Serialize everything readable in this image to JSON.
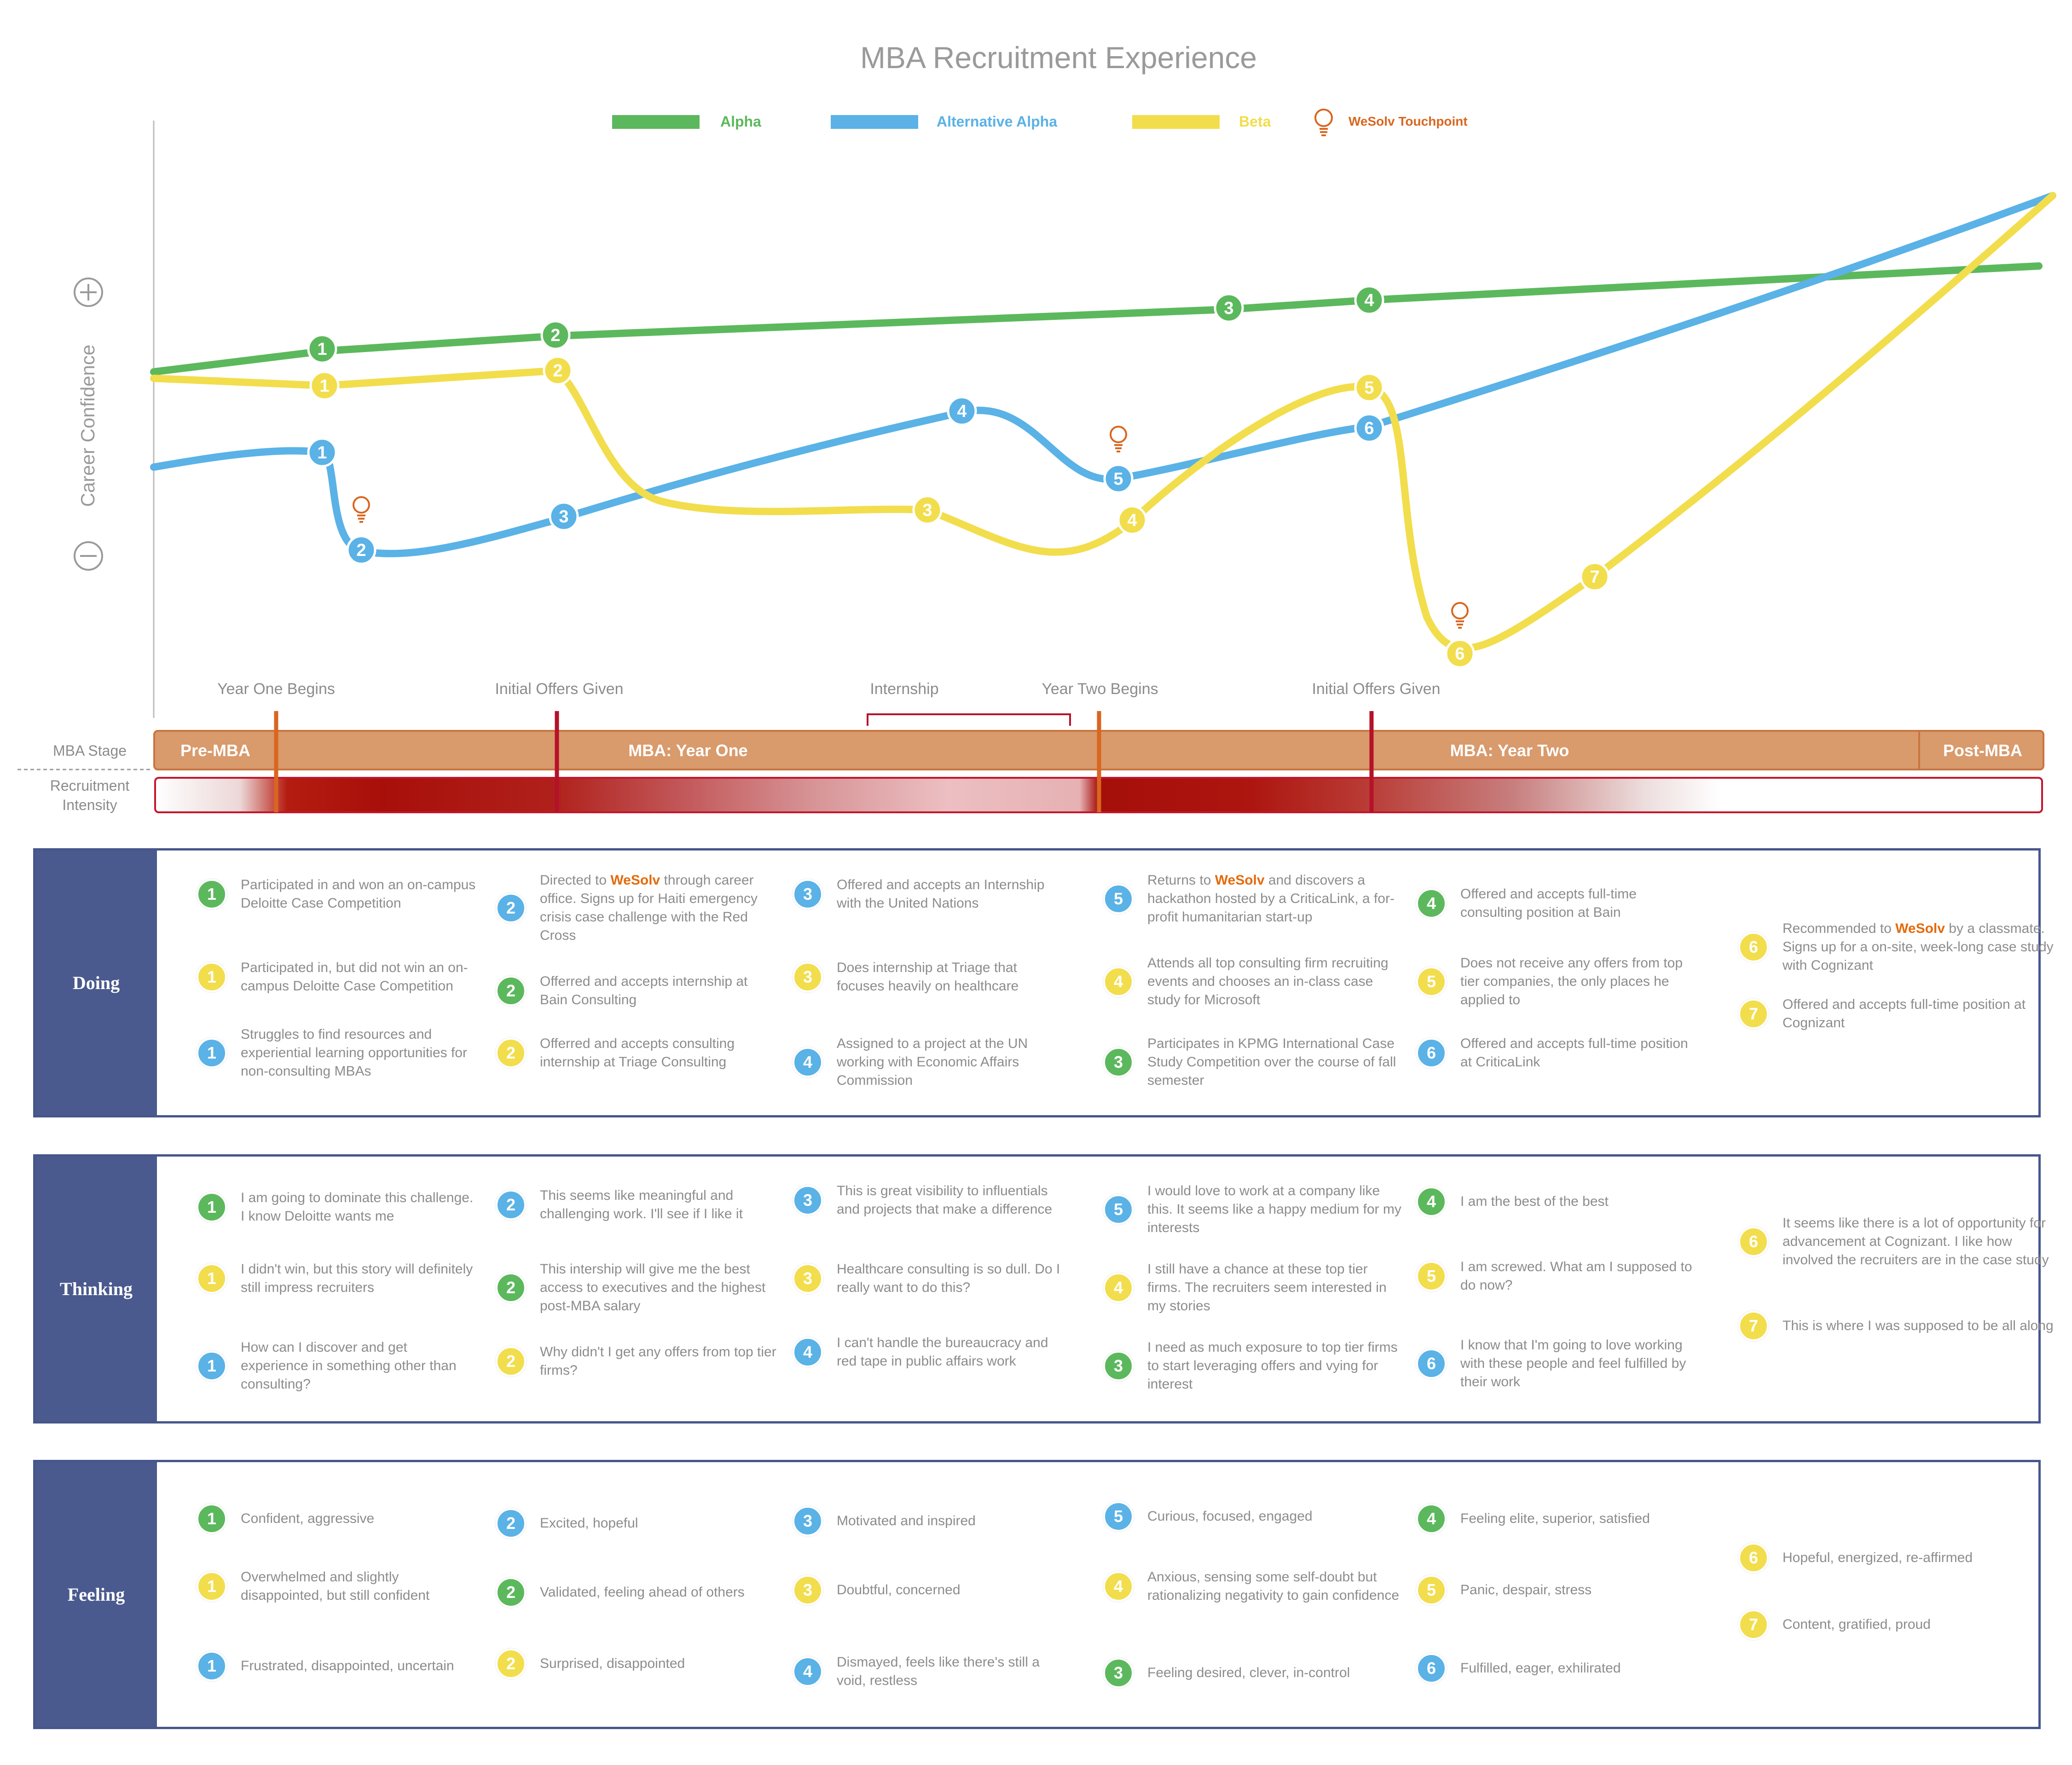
{
  "title": "MBA Recruitment Experience",
  "legend": [
    {
      "label": "Alpha",
      "color": "#5cb85c"
    },
    {
      "label": "Alternative Alpha",
      "color": "#5ab2e6"
    },
    {
      "label": "Beta",
      "color": "#f2dd4c"
    },
    {
      "label": "WeSolv Touchpoint",
      "color": "#d9661f",
      "icon": "lightbulb-icon"
    }
  ],
  "colors": {
    "alpha": "#5cb85c",
    "alt_alpha": "#5ab2e6",
    "beta": "#f2dd4c",
    "accent": "#e46a0c",
    "stage_fill": "#d99a6c",
    "stage_border": "#c8753f",
    "section_header": "#4a5a8e",
    "marker_dark": "#b5122a"
  },
  "y_axis": {
    "label": "Career Confidence",
    "plus": "+",
    "minus": "−"
  },
  "milestones": [
    "Year One Begins",
    "Initial Offers Given",
    "Internship",
    "Year Two Begins",
    "Initial Offers Given"
  ],
  "stage_row_label": "MBA Stage",
  "stages": [
    "Pre-MBA",
    "MBA: Year One",
    "MBA: Year Two",
    "Post-MBA"
  ],
  "intensity_label": "Recruitment Intensity",
  "sections": [
    {
      "name": "Doing",
      "entries": [
        {
          "num": "1",
          "color": "green",
          "text": "Participated in and won an on-campus Deloitte Case Competition"
        },
        {
          "num": "1",
          "color": "yellow",
          "text": "Participated in, but did not win an on-campus Deloitte Case Competition"
        },
        {
          "num": "1",
          "color": "blue",
          "text": "Struggles to find resources and experiential learning opportunities for non-consulting MBAs"
        },
        {
          "num": "2",
          "color": "blue",
          "text_before": "Directed to ",
          "highlight": "WeSolv",
          "text_after": " through career office. Signs up for Haiti emergency crisis case challenge with the Red Cross"
        },
        {
          "num": "2",
          "color": "green",
          "text": "Offerred and accepts internship at Bain Consulting"
        },
        {
          "num": "2",
          "color": "yellow",
          "text": "Offerred and accepts consulting internship at Triage Consulting"
        },
        {
          "num": "3",
          "color": "blue",
          "text": "Offered and accepts an Internship with the United Nations"
        },
        {
          "num": "3",
          "color": "yellow",
          "text": "Does internship at Triage that focuses heavily on healthcare"
        },
        {
          "num": "4",
          "color": "blue",
          "text": "Assigned to a project at the UN working with Economic Affairs Commission"
        },
        {
          "num": "5",
          "color": "blue",
          "text_before": "Returns to ",
          "highlight": "WeSolv",
          "text_after": " and discovers a hackathon hosted by a CriticaLink, a for-profit humanitarian start-up"
        },
        {
          "num": "4",
          "color": "yellow",
          "text": "Attends all top consulting firm recruiting events and chooses an in-class case study for Microsoft"
        },
        {
          "num": "3",
          "color": "green",
          "text": "Participates in KPMG International Case Study Competition over the course of fall semester"
        },
        {
          "num": "4",
          "color": "green",
          "text": "Offered and accepts full-time consulting position at Bain"
        },
        {
          "num": "5",
          "color": "yellow",
          "text": "Does not receive any offers from top tier companies, the only places he applied to"
        },
        {
          "num": "6",
          "color": "blue",
          "text": "Offered and accepts full-time position at CriticaLink"
        },
        {
          "num": "6",
          "color": "yellow",
          "text_before": "Recommended to ",
          "highlight": "WeSolv",
          "text_after": " by a classmate. Signs up for a on-site, week-long case study with Cognizant"
        },
        {
          "num": "7",
          "color": "yellow",
          "text": "Offered and accepts full-time position at Cognizant"
        }
      ]
    },
    {
      "name": "Thinking",
      "entries": [
        {
          "num": "1",
          "color": "green",
          "text": "I am going to dominate this challenge. I know Deloitte wants me"
        },
        {
          "num": "1",
          "color": "yellow",
          "text": "I didn't win, but this story will definitely still impress recruiters"
        },
        {
          "num": "1",
          "color": "blue",
          "text": "How can I discover and get experience in something other than consulting?"
        },
        {
          "num": "2",
          "color": "blue",
          "text": "This seems like meaningful and challenging work. I'll see if I like it"
        },
        {
          "num": "2",
          "color": "green",
          "text": "This intership will give me the best access to executives and the highest post-MBA salary"
        },
        {
          "num": "2",
          "color": "yellow",
          "text": "Why didn't I get any offers from top tier firms?"
        },
        {
          "num": "3",
          "color": "blue",
          "text": "This is great visibility to influentials and projects that make a difference"
        },
        {
          "num": "3",
          "color": "yellow",
          "text": "Healthcare consulting is so dull. Do I really want to do this?"
        },
        {
          "num": "4",
          "color": "blue",
          "text": "I can't handle the bureaucracy and red tape in public affairs work"
        },
        {
          "num": "5",
          "color": "blue",
          "text": "I would love to work at a company like this. It seems like a happy medium for my interests"
        },
        {
          "num": "4",
          "color": "yellow",
          "text": "I still have a chance at these top tier firms. The recruiters seem interested in my stories"
        },
        {
          "num": "3",
          "color": "green",
          "text": "I need as much exposure to top tier firms to start leveraging offers and vying for interest"
        },
        {
          "num": "4",
          "color": "green",
          "text": "I am the best of the best"
        },
        {
          "num": "5",
          "color": "yellow",
          "text": "I am screwed. What am I supposed to do now?"
        },
        {
          "num": "6",
          "color": "blue",
          "text": "I know that I'm going to love working with these people and feel fulfilled by their work"
        },
        {
          "num": "6",
          "color": "yellow",
          "text": "It seems like there is a lot of opportunity for advancement at Cognizant. I like how involved the recruiters are in the case study"
        },
        {
          "num": "7",
          "color": "yellow",
          "text": "This is where I was supposed to be all along"
        }
      ]
    },
    {
      "name": "Feeling",
      "entries": [
        {
          "num": "1",
          "color": "green",
          "text": "Confident, aggressive"
        },
        {
          "num": "1",
          "color": "yellow",
          "text": "Overwhelmed and slightly disappointed, but still confident"
        },
        {
          "num": "1",
          "color": "blue",
          "text": "Frustrated, disappointed, uncertain"
        },
        {
          "num": "2",
          "color": "blue",
          "text": "Excited, hopeful"
        },
        {
          "num": "2",
          "color": "green",
          "text": "Validated, feeling ahead of others"
        },
        {
          "num": "2",
          "color": "yellow",
          "text": "Surprised, disappointed"
        },
        {
          "num": "3",
          "color": "blue",
          "text": "Motivated and inspired"
        },
        {
          "num": "3",
          "color": "yellow",
          "text": "Doubtful, concerned"
        },
        {
          "num": "4",
          "color": "blue",
          "text": "Dismayed, feels like there's still a void, restless"
        },
        {
          "num": "5",
          "color": "blue",
          "text": "Curious, focused, engaged"
        },
        {
          "num": "4",
          "color": "yellow",
          "text": "Anxious, sensing some self-doubt but rationalizing negativity to gain confidence"
        },
        {
          "num": "3",
          "color": "green",
          "text": "Feeling desired, clever, in-control"
        },
        {
          "num": "4",
          "color": "green",
          "text": "Feeling elite, superior, satisfied"
        },
        {
          "num": "5",
          "color": "yellow",
          "text": "Panic, despair, stress"
        },
        {
          "num": "6",
          "color": "blue",
          "text": "Fulfilled, eager, exhilirated"
        },
        {
          "num": "6",
          "color": "yellow",
          "text": "Hopeful, energized, re-affirmed"
        },
        {
          "num": "7",
          "color": "yellow",
          "text": "Content, gratified, proud"
        }
      ]
    }
  ],
  "journey_markers": {
    "alpha": [
      "1",
      "2",
      "3",
      "4"
    ],
    "alt_alpha": [
      "1",
      "2",
      "3",
      "4",
      "5",
      "6"
    ],
    "beta": [
      "1",
      "2",
      "3",
      "4",
      "5",
      "6",
      "7"
    ]
  }
}
